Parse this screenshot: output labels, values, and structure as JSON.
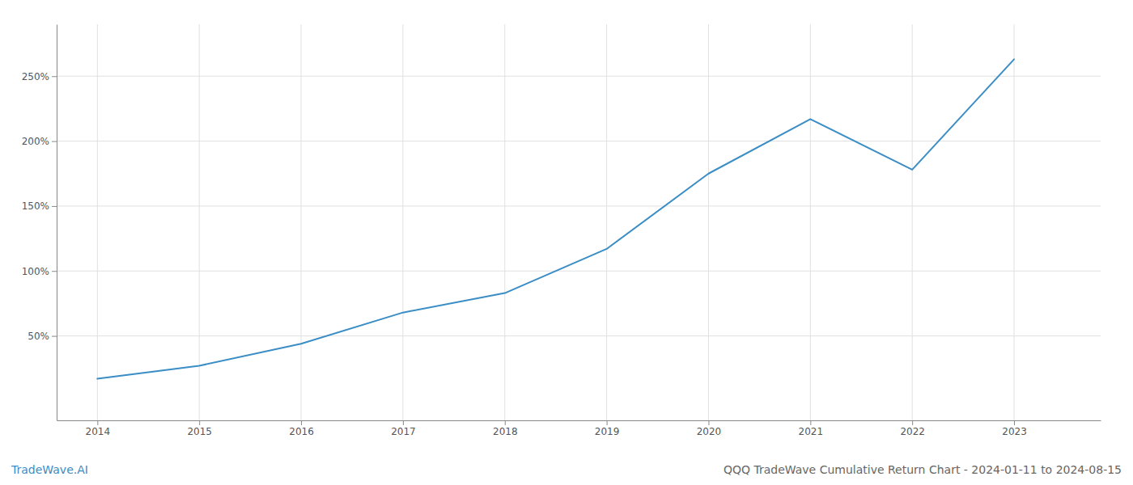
{
  "chart_data": {
    "type": "line",
    "title": "QQQ TradeWave Cumulative Return Chart - 2024-01-11 to 2024-08-15",
    "annotations": [
      "TradeWave.AI"
    ],
    "x": [
      2014.0,
      2015.0,
      2016.0,
      2017.0,
      2018.0,
      2019.0,
      2020.0,
      2021.0,
      2022.0,
      2023.0
    ],
    "values": [
      17,
      27,
      44,
      68,
      83,
      117,
      175,
      217,
      178,
      263
    ],
    "color": "#3a8dc5",
    "xlim": [
      2013.6,
      2023.85
    ],
    "xticks": [
      2014,
      2015,
      2016,
      2017,
      2018,
      2019,
      2020,
      2021,
      2022,
      2023
    ],
    "ylim": [
      -15,
      290
    ],
    "yticks": [
      {
        "value": 50,
        "label": "50%"
      },
      {
        "value": 100,
        "label": "100%"
      },
      {
        "value": 150,
        "label": "150%"
      },
      {
        "value": 200,
        "label": "200%"
      },
      {
        "value": 250,
        "label": "250%"
      }
    ],
    "grid": true
  }
}
